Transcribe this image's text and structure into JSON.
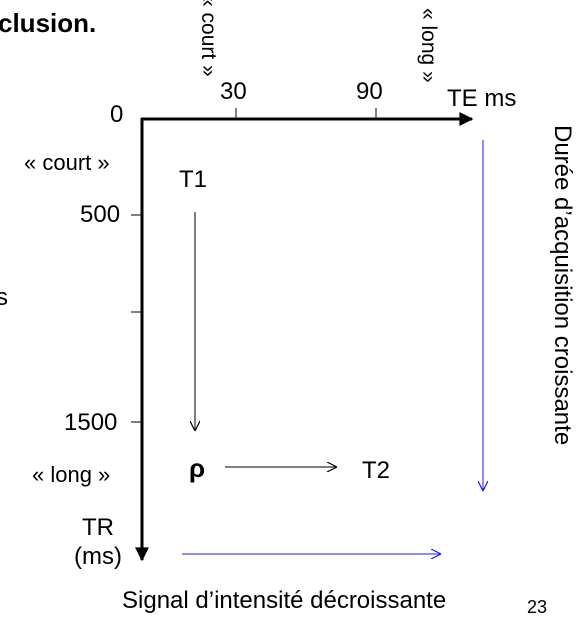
{
  "slide": {
    "heading_fragment": "clusion.",
    "left_edge_fragment": "s",
    "page_number_fragment": "23"
  },
  "diagram": {
    "te_axis": {
      "label": "TE ms",
      "ticks": [
        "30",
        "90"
      ],
      "short_label": "« court »",
      "long_label": "« long »"
    },
    "tr_axis": {
      "label_line1": "TR",
      "label_line2": "(ms)",
      "origin": "0",
      "ticks": [
        "500",
        "1500"
      ],
      "short_label": "« court »",
      "long_label": "« long »"
    },
    "weightings": {
      "t1": "T1",
      "rho": "ρ",
      "t2": "T2"
    },
    "right_caption": "Durée d’acquisition croissante",
    "bottom_caption": "Signal d’intensité décroissante",
    "colors": {
      "axis": "#000000",
      "trend_arrows": "#1a1aff"
    }
  }
}
